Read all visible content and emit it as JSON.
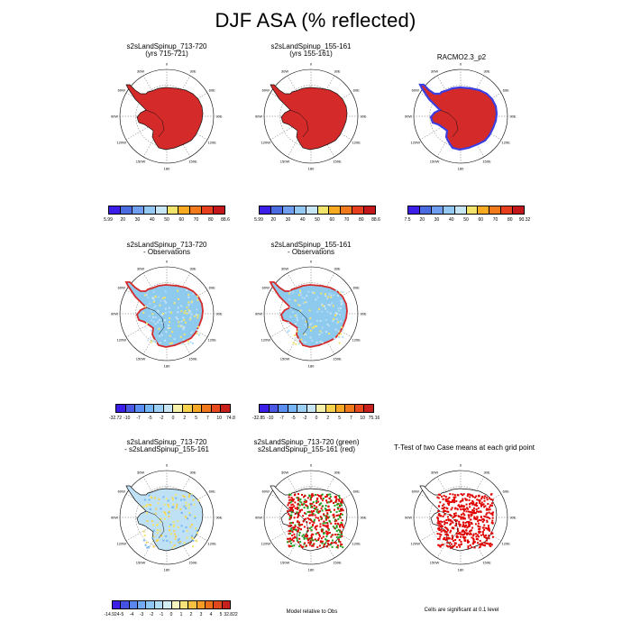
{
  "page_title": "DJF ASA (% reflected)",
  "panels": [
    {
      "id": "p1",
      "title": [
        "s2sLandSpinup_713-720",
        "(yrs 715-721)"
      ],
      "fill": "#d42a2a"
    },
    {
      "id": "p2",
      "title": [
        "s2sLandSpinup_155-161",
        "(yrs 155-161)"
      ],
      "fill": "#d42a2a"
    },
    {
      "id": "p3",
      "title": [
        "RACMO2.3_p2",
        ""
      ],
      "fill": "#d42a2a"
    },
    {
      "id": "p4",
      "title": [
        "s2sLandSpinup_713-720",
        "- Observations"
      ],
      "fill": "#8ec9ee"
    },
    {
      "id": "p5",
      "title": [
        "s2sLandSpinup_155-161",
        "- Observations"
      ],
      "fill": "#8ec9ee"
    },
    {
      "id": "p6",
      "title": [
        "s2sLandSpinup_713-720",
        "- s2sLandSpinup_155-161"
      ],
      "fill": "#bfe1f5"
    },
    {
      "id": "p7",
      "title": [
        "s2sLandSpinup_713-720 (green)",
        "s2sLandSpinup_155-161 (red)"
      ],
      "fill": "#ffffff"
    },
    {
      "id": "p8",
      "title": [
        "T-Test of two Case means at each grid point",
        ""
      ],
      "fill": "#ffffff"
    }
  ],
  "lon_labels": [
    "0",
    "30E",
    "60E",
    "90E",
    "120E",
    "150E",
    "180",
    "150W",
    "120W",
    "90W",
    "60W",
    "30W"
  ],
  "colorbars": {
    "abs_colors": [
      "#3b1ee8",
      "#4a6ce0",
      "#6f9ef0",
      "#94c8f4",
      "#c6e6f6",
      "#f2e46a",
      "#f7aa22",
      "#f07a1c",
      "#e8401f",
      "#c2181c"
    ],
    "diff_colors": [
      "#3b1ee8",
      "#4a58e6",
      "#5b8ef2",
      "#77b6f6",
      "#9ccff6",
      "#c8e5f6",
      "#f4f0a8",
      "#f8d24c",
      "#f8a824",
      "#f0781c",
      "#e64a1e",
      "#c8201c"
    ],
    "diff12_colors": [
      "#3b1ee8",
      "#4552e4",
      "#5a86ee",
      "#72aaf4",
      "#8ec6f6",
      "#b2dcf6",
      "#d4ecf4",
      "#f8f4c0",
      "#f8e27a",
      "#f8c040",
      "#f49c26",
      "#ec701c",
      "#e0481e",
      "#c4201c"
    ],
    "cb1": [
      "5.99",
      "20",
      "30",
      "40",
      "50",
      "60",
      "70",
      "80",
      "88.6"
    ],
    "cb2": [
      "5.99",
      "20",
      "30",
      "40",
      "50",
      "60",
      "70",
      "80",
      "88.6"
    ],
    "cb3": [
      "7.5",
      "20",
      "30",
      "40",
      "50",
      "60",
      "70",
      "80",
      "90.32"
    ],
    "cb4": [
      "-32.72",
      "-10",
      "-7",
      "-5",
      "-2",
      "0",
      "2",
      "5",
      "7",
      "10",
      "74.8"
    ],
    "cb5": [
      "-32.85",
      "-10",
      "-7",
      "-5",
      "-2",
      "0",
      "2",
      "5",
      "7",
      "10",
      "75.16"
    ],
    "cb6": [
      "-14.924",
      "-5",
      "-4",
      "-3",
      "-2",
      "-1",
      "0",
      "1",
      "2",
      "3",
      "4",
      "5",
      "32.822"
    ]
  },
  "captions": {
    "model_relative": "Model relative to Obs",
    "significance": "Cells are significant at 0.1 level"
  }
}
